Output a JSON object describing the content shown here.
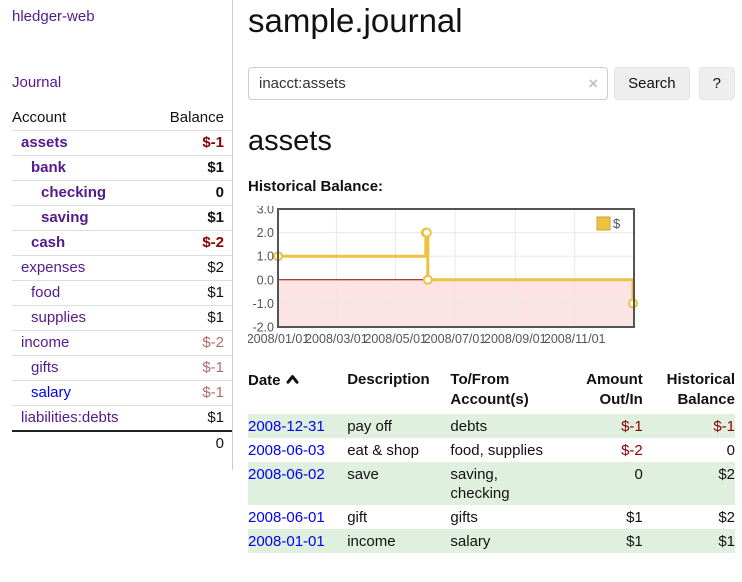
{
  "app": {
    "title": "hledger-web",
    "nav_journal": "Journal"
  },
  "sidebar": {
    "header": {
      "account": "Account",
      "balance": "Balance"
    },
    "accounts": [
      {
        "name": "assets",
        "balance": "$-1",
        "indent": 1,
        "bold": true,
        "link": "purple",
        "balance_style": "neg-strong"
      },
      {
        "name": "bank",
        "balance": "$1",
        "indent": 2,
        "bold": true,
        "link": "purple",
        "balance_style": "pos"
      },
      {
        "name": "checking",
        "balance": "0",
        "indent": 3,
        "bold": true,
        "link": "purple",
        "balance_style": "pos"
      },
      {
        "name": "saving",
        "balance": "$1",
        "indent": 3,
        "bold": true,
        "link": "purple",
        "balance_style": "pos"
      },
      {
        "name": "cash",
        "balance": "$-2",
        "indent": 2,
        "bold": true,
        "link": "purple",
        "balance_style": "neg-strong"
      },
      {
        "name": "expenses",
        "balance": "$2",
        "indent": 1,
        "bold": false,
        "link": "purple",
        "balance_style": "pos"
      },
      {
        "name": "food",
        "balance": "$1",
        "indent": 2,
        "bold": false,
        "link": "purple",
        "balance_style": "pos"
      },
      {
        "name": "supplies",
        "balance": "$1",
        "indent": 2,
        "bold": false,
        "link": "purple",
        "balance_style": "pos"
      },
      {
        "name": "income",
        "balance": "$-2",
        "indent": 1,
        "bold": false,
        "link": "purple",
        "balance_style": "neg-soft"
      },
      {
        "name": "gifts",
        "balance": "$-1",
        "indent": 2,
        "bold": false,
        "link": "purple",
        "balance_style": "neg-soft"
      },
      {
        "name": "salary",
        "balance": "$-1",
        "indent": 2,
        "bold": false,
        "link": "blue",
        "balance_style": "neg-soft"
      },
      {
        "name": "liabilities:debts",
        "balance": "$1",
        "indent": 1,
        "bold": false,
        "link": "purple",
        "balance_style": "pos"
      }
    ],
    "total": "0"
  },
  "main": {
    "title": "sample.journal",
    "search": {
      "value": "inacct:assets",
      "clear_icon": "×",
      "button": "Search",
      "help": "?"
    },
    "account_heading": "assets",
    "chart_label": "Historical Balance:"
  },
  "chart_data": {
    "type": "line",
    "step": true,
    "title": "Historical Balance",
    "legend": [
      {
        "label": "$",
        "color": "#edc240"
      }
    ],
    "legend_position": "top-right",
    "series": [
      {
        "name": "$",
        "color": "#edc240",
        "points": [
          [
            "2008-01-01",
            1
          ],
          [
            "2008-06-01",
            2
          ],
          [
            "2008-06-02",
            2
          ],
          [
            "2008-06-03",
            0
          ],
          [
            "2008-12-31",
            -1
          ]
        ]
      }
    ],
    "x_range": [
      "2008-01-01",
      "2009-01-01"
    ],
    "x_ticks": [
      "2008/01/01",
      "2008/03/01",
      "2008/05/01",
      "2008/07/01",
      "2008/09/01",
      "2008/11/01"
    ],
    "y_ticks": [
      3.0,
      2.0,
      1.0,
      0.0,
      -1.0,
      -2.0
    ],
    "ylim": [
      -2,
      3
    ],
    "grid": true,
    "negative_fill": "#fce4e4",
    "zero_line_color": "#8b0000",
    "border_color": "#545454",
    "tick_color": "#545454"
  },
  "register": {
    "columns": [
      {
        "line1": "Date",
        "line2": "",
        "sort": "asc"
      },
      {
        "line1": "Description",
        "line2": ""
      },
      {
        "line1": "To/From",
        "line2": "Account(s)"
      },
      {
        "line1": "Amount",
        "line2": "Out/In"
      },
      {
        "line1": "Historical",
        "line2": "Balance"
      }
    ],
    "rows": [
      {
        "date": "2008-12-31",
        "description": "pay off",
        "accounts": "debts",
        "amount": "$-1",
        "balance": "$-1",
        "amount_style": "neg-strong",
        "balance_style": "neg-strong"
      },
      {
        "date": "2008-06-03",
        "description": "eat & shop",
        "accounts": "food, supplies",
        "amount": "$-2",
        "balance": "0",
        "amount_style": "neg-strong",
        "balance_style": "pos"
      },
      {
        "date": "2008-06-02",
        "description": "save",
        "accounts": "saving, checking",
        "amount": "0",
        "balance": "$2",
        "amount_style": "pos",
        "balance_style": "pos"
      },
      {
        "date": "2008-06-01",
        "description": "gift",
        "accounts": "gifts",
        "amount": "$1",
        "balance": "$2",
        "amount_style": "pos",
        "balance_style": "pos"
      },
      {
        "date": "2008-01-01",
        "description": "income",
        "accounts": "salary",
        "amount": "$1",
        "balance": "$1",
        "amount_style": "pos",
        "balance_style": "pos"
      }
    ]
  }
}
